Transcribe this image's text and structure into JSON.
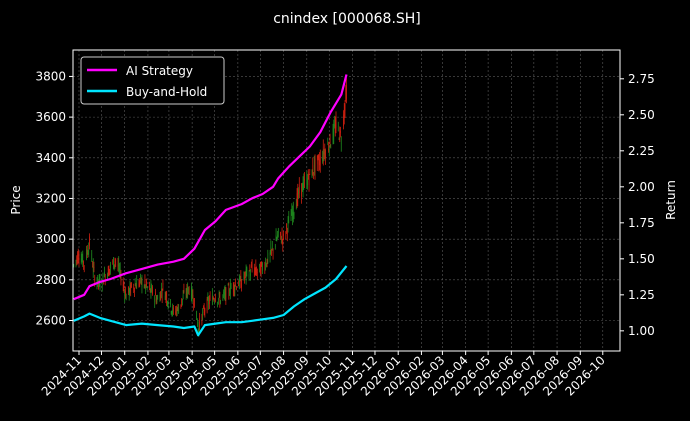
{
  "chart_data": {
    "type": "line",
    "title": "cnindex [000068.SH]",
    "ylabel_left": "Price",
    "ylabel_right": "Return",
    "grid": true,
    "legend_position": "top-left",
    "colors": {
      "background": "#000000",
      "ai_strategy": "#ff00ff",
      "buy_and_hold": "#00e5ff",
      "candle_up": "#1f8a1f",
      "candle_down": "#d02010",
      "grid": "#5a5a5a",
      "axis": "#ffffff"
    },
    "x_ticks": [
      "2024-11",
      "2024-12",
      "2025-01",
      "2025-02",
      "2025-03",
      "2025-04",
      "2025-05",
      "2025-06",
      "2025-07",
      "2025-08",
      "2025-09",
      "2025-10",
      "2025-11",
      "2025-12",
      "2026-01",
      "2026-02",
      "2026-03",
      "2026-04",
      "2026-05",
      "2026-06",
      "2026-07",
      "2026-08",
      "2026-09",
      "2026-10"
    ],
    "x_range": [
      "2024-10-24",
      "2026-10-24"
    ],
    "y_left": {
      "range": [
        2450,
        3930
      ],
      "ticks": [
        2600,
        2800,
        3000,
        3200,
        3400,
        3600,
        3800
      ]
    },
    "y_right": {
      "range": [
        0.86,
        2.95
      ],
      "ticks": [
        "1.00",
        "1.25",
        "1.50",
        "1.75",
        "2.00",
        "2.25",
        "2.50",
        "2.75"
      ]
    },
    "price": [
      [
        "2024-10-25",
        2870
      ],
      [
        "2024-11-01",
        2930
      ],
      [
        "2024-11-08",
        2880
      ],
      [
        "2024-11-15",
        2980
      ],
      [
        "2024-11-22",
        2810
      ],
      [
        "2024-11-29",
        2780
      ],
      [
        "2024-12-06",
        2820
      ],
      [
        "2024-12-13",
        2860
      ],
      [
        "2024-12-20",
        2900
      ],
      [
        "2024-12-27",
        2820
      ],
      [
        "2025-01-03",
        2720
      ],
      [
        "2025-01-10",
        2760
      ],
      [
        "2025-01-17",
        2780
      ],
      [
        "2025-01-24",
        2790
      ],
      [
        "2025-01-31",
        2760
      ],
      [
        "2025-02-07",
        2740
      ],
      [
        "2025-02-14",
        2700
      ],
      [
        "2025-02-21",
        2760
      ],
      [
        "2025-02-28",
        2700
      ],
      [
        "2025-03-07",
        2640
      ],
      [
        "2025-03-14",
        2660
      ],
      [
        "2025-03-21",
        2720
      ],
      [
        "2025-03-28",
        2760
      ],
      [
        "2025-04-04",
        2700
      ],
      [
        "2025-04-09",
        2560
      ],
      [
        "2025-04-18",
        2660
      ],
      [
        "2025-04-25",
        2700
      ],
      [
        "2025-05-02",
        2720
      ],
      [
        "2025-05-09",
        2700
      ],
      [
        "2025-05-16",
        2730
      ],
      [
        "2025-05-23",
        2760
      ],
      [
        "2025-05-30",
        2780
      ],
      [
        "2025-06-06",
        2790
      ],
      [
        "2025-06-13",
        2830
      ],
      [
        "2025-06-20",
        2850
      ],
      [
        "2025-06-27",
        2840
      ],
      [
        "2025-07-04",
        2860
      ],
      [
        "2025-07-11",
        2900
      ],
      [
        "2025-07-18",
        2950
      ],
      [
        "2025-07-25",
        3020
      ],
      [
        "2025-08-01",
        3000
      ],
      [
        "2025-08-08",
        3080
      ],
      [
        "2025-08-15",
        3150
      ],
      [
        "2025-08-22",
        3230
      ],
      [
        "2025-08-29",
        3270
      ],
      [
        "2025-09-05",
        3310
      ],
      [
        "2025-09-12",
        3360
      ],
      [
        "2025-09-19",
        3390
      ],
      [
        "2025-09-26",
        3440
      ],
      [
        "2025-10-03",
        3480
      ],
      [
        "2025-10-10",
        3560
      ],
      [
        "2025-10-17",
        3500
      ],
      [
        "2025-10-24",
        3730
      ]
    ],
    "series": [
      {
        "name": "AI Strategy",
        "axis": "right",
        "values": [
          [
            "2024-10-25",
            1.22
          ],
          [
            "2024-11-08",
            1.25
          ],
          [
            "2024-11-15",
            1.31
          ],
          [
            "2024-11-29",
            1.34
          ],
          [
            "2024-12-13",
            1.36
          ],
          [
            "2025-01-03",
            1.4
          ],
          [
            "2025-01-24",
            1.43
          ],
          [
            "2025-02-14",
            1.46
          ],
          [
            "2025-03-07",
            1.48
          ],
          [
            "2025-03-21",
            1.5
          ],
          [
            "2025-04-04",
            1.57
          ],
          [
            "2025-04-18",
            1.7
          ],
          [
            "2025-05-02",
            1.76
          ],
          [
            "2025-05-16",
            1.84
          ],
          [
            "2025-06-06",
            1.88
          ],
          [
            "2025-06-20",
            1.92
          ],
          [
            "2025-07-04",
            1.95
          ],
          [
            "2025-07-18",
            2.0
          ],
          [
            "2025-07-25",
            2.06
          ],
          [
            "2025-08-08",
            2.14
          ],
          [
            "2025-08-22",
            2.21
          ],
          [
            "2025-09-05",
            2.28
          ],
          [
            "2025-09-19",
            2.38
          ],
          [
            "2025-10-03",
            2.52
          ],
          [
            "2025-10-17",
            2.64
          ],
          [
            "2025-10-24",
            2.78
          ]
        ]
      },
      {
        "name": "Buy-and-Hold",
        "axis": "right",
        "values": [
          [
            "2024-10-25",
            1.07
          ],
          [
            "2024-11-08",
            1.1
          ],
          [
            "2024-11-15",
            1.12
          ],
          [
            "2024-11-29",
            1.09
          ],
          [
            "2024-12-13",
            1.07
          ],
          [
            "2025-01-03",
            1.04
          ],
          [
            "2025-01-24",
            1.05
          ],
          [
            "2025-02-14",
            1.04
          ],
          [
            "2025-03-07",
            1.03
          ],
          [
            "2025-03-21",
            1.02
          ],
          [
            "2025-04-04",
            1.03
          ],
          [
            "2025-04-09",
            0.97
          ],
          [
            "2025-04-18",
            1.04
          ],
          [
            "2025-05-02",
            1.05
          ],
          [
            "2025-05-16",
            1.06
          ],
          [
            "2025-06-06",
            1.06
          ],
          [
            "2025-06-20",
            1.07
          ],
          [
            "2025-07-04",
            1.08
          ],
          [
            "2025-07-18",
            1.09
          ],
          [
            "2025-08-01",
            1.11
          ],
          [
            "2025-08-15",
            1.17
          ],
          [
            "2025-08-29",
            1.22
          ],
          [
            "2025-09-12",
            1.26
          ],
          [
            "2025-09-26",
            1.3
          ],
          [
            "2025-10-10",
            1.36
          ],
          [
            "2025-10-24",
            1.45
          ]
        ]
      }
    ]
  }
}
